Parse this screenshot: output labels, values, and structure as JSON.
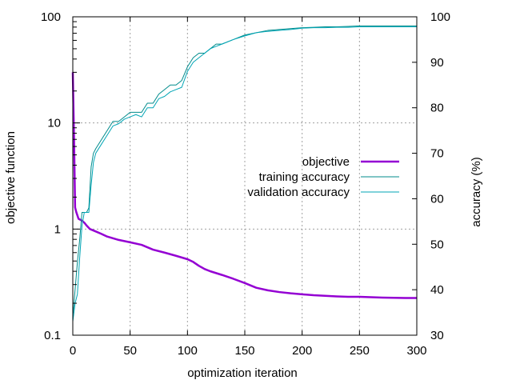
{
  "chart_data": {
    "type": "line",
    "title": "",
    "xlabel": "optimization iteration",
    "ylabel": "objective function",
    "y2label": "accuracy (%)",
    "xlim": [
      0,
      300
    ],
    "ylim": [
      0.1,
      100
    ],
    "yscale": "log",
    "y2lim": [
      30,
      100
    ],
    "grid": true,
    "legend_position": "center-right",
    "x_ticks": [
      "0",
      "50",
      "100",
      "150",
      "200",
      "250",
      "300"
    ],
    "y_ticks": [
      "0.1",
      "1",
      "10",
      "100"
    ],
    "y2_ticks": [
      "30",
      "40",
      "50",
      "60",
      "70",
      "80",
      "90",
      "100"
    ],
    "series": [
      {
        "name": "objective",
        "axis": "y",
        "color": "#9400d3",
        "x": [
          0,
          1,
          2,
          3,
          5,
          8,
          10,
          12,
          15,
          20,
          25,
          30,
          40,
          50,
          60,
          70,
          80,
          90,
          100,
          105,
          110,
          115,
          120,
          130,
          140,
          150,
          160,
          170,
          180,
          190,
          200,
          210,
          220,
          230,
          240,
          250,
          260,
          270,
          280,
          290,
          300
        ],
        "values": [
          30,
          8,
          1.6,
          1.45,
          1.25,
          1.2,
          1.15,
          1.08,
          1.0,
          0.95,
          0.9,
          0.85,
          0.79,
          0.75,
          0.71,
          0.64,
          0.6,
          0.56,
          0.52,
          0.49,
          0.45,
          0.42,
          0.4,
          0.37,
          0.34,
          0.31,
          0.28,
          0.265,
          0.255,
          0.248,
          0.243,
          0.238,
          0.235,
          0.232,
          0.23,
          0.23,
          0.228,
          0.226,
          0.225,
          0.224,
          0.224
        ]
      },
      {
        "name": "training accuracy",
        "axis": "y2",
        "color": "#008b8b",
        "x": [
          0,
          2,
          4,
          6,
          8,
          10,
          12,
          14,
          16,
          18,
          20,
          25,
          30,
          35,
          40,
          45,
          50,
          55,
          60,
          65,
          70,
          75,
          80,
          85,
          90,
          95,
          100,
          105,
          110,
          115,
          120,
          125,
          130,
          140,
          150,
          160,
          170,
          180,
          190,
          200,
          210,
          220,
          230,
          240,
          250,
          260,
          270,
          280,
          290,
          300
        ],
        "values": [
          34,
          40,
          46,
          51,
          57,
          57,
          57,
          58,
          67,
          70,
          71,
          73,
          75,
          77,
          77,
          78,
          79,
          79,
          79,
          81,
          81,
          83,
          84,
          85,
          85,
          86,
          89,
          91,
          92,
          92,
          93,
          94,
          94,
          95,
          96,
          96.5,
          97,
          97.2,
          97.4,
          97.6,
          97.7,
          97.8,
          97.8,
          97.9,
          98,
          98,
          98,
          98,
          98,
          98
        ]
      },
      {
        "name": "validation accuracy",
        "axis": "y2",
        "color": "#00a5b5",
        "x": [
          0,
          2,
          4,
          6,
          8,
          10,
          12,
          14,
          16,
          18,
          20,
          25,
          30,
          35,
          40,
          45,
          50,
          55,
          60,
          65,
          70,
          75,
          80,
          85,
          90,
          95,
          100,
          105,
          110,
          115,
          120,
          125,
          130,
          140,
          150,
          160,
          170,
          180,
          190,
          200,
          210,
          220,
          230,
          240,
          250,
          260,
          270,
          280,
          290,
          300
        ],
        "values": [
          33,
          37,
          39,
          47,
          54,
          57,
          57,
          57,
          63,
          68,
          70,
          72,
          74,
          76,
          76.5,
          77.5,
          78,
          78.5,
          78,
          80,
          80,
          82,
          82.5,
          83.5,
          84,
          84.5,
          88,
          90,
          91,
          92,
          93,
          93.5,
          94,
          95,
          95.8,
          96.5,
          96.8,
          97,
          97.2,
          97.5,
          97.6,
          97.6,
          97.7,
          97.7,
          97.8,
          97.8,
          97.8,
          97.8,
          97.8,
          97.8
        ]
      }
    ]
  }
}
